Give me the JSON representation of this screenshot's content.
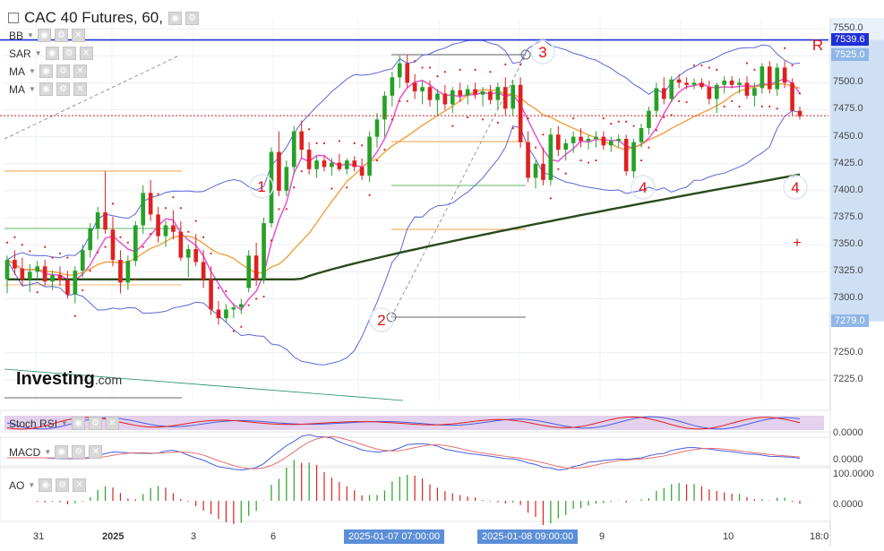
{
  "window": {
    "title": "CAC 40 Futures, 60,",
    "brand_name": "Investing",
    "brand_suffix": ".com"
  },
  "indicators": [
    {
      "label": "BB"
    },
    {
      "label": "SAR"
    },
    {
      "label": "MA"
    },
    {
      "label": "MA"
    }
  ],
  "sub_panels": [
    {
      "label": "Stoch RSI",
      "axis": [
        "0.0000"
      ]
    },
    {
      "label": "MACD",
      "axis": [
        "0.0000"
      ]
    },
    {
      "label": "AO",
      "axis": [
        "100.0000",
        "0.0000"
      ]
    }
  ],
  "chart_data": {
    "type": "candlestick",
    "symbol": "CAC 40 Futures",
    "interval": "60",
    "y_ticks": [
      7550.0,
      7525.0,
      7500.0,
      7475.0,
      7450.0,
      7425.0,
      7400.0,
      7375.0,
      7350.0,
      7325.0,
      7300.0,
      7279.0,
      7250.0,
      7225.0
    ],
    "y_tick_labels": [
      "7550.0",
      "7525.0",
      "7500.0",
      "7475.0",
      "7450.0",
      "7425.0",
      "7400.0",
      "7375.0",
      "7350.0",
      "7325.0",
      "7300.0",
      "7279.0",
      "7250.0",
      "7225.0"
    ],
    "ylim": [
      7205,
      7560
    ],
    "x_labels": [
      "31",
      "2025",
      "3",
      "6",
      "9",
      "10",
      "18:0"
    ],
    "x_flag_labels": [
      "2025-01-07 07:00:00",
      "2025-01-08 09:00:00"
    ],
    "price_flags": [
      {
        "label": "7539.6",
        "value": 7539.6,
        "color": "#1f2fd6"
      },
      {
        "label": "7525.0",
        "value": 7525.0,
        "color": "#8fb6e6"
      },
      {
        "label": "7279.0",
        "value": 7279.0,
        "color": "#8fb6e6"
      }
    ],
    "resistance_line": 7539.6,
    "current_price_line": 7469.5,
    "annotations": [
      "1",
      "2",
      "3",
      "4",
      "4",
      "R",
      "+"
    ],
    "candles": [
      {
        "o": 7318,
        "h": 7340,
        "l": 7305,
        "c": 7336
      },
      {
        "o": 7336,
        "h": 7345,
        "l": 7322,
        "c": 7328
      },
      {
        "o": 7328,
        "h": 7338,
        "l": 7312,
        "c": 7318
      },
      {
        "o": 7318,
        "h": 7332,
        "l": 7306,
        "c": 7325
      },
      {
        "o": 7325,
        "h": 7335,
        "l": 7318,
        "c": 7330
      },
      {
        "o": 7330,
        "h": 7336,
        "l": 7312,
        "c": 7316
      },
      {
        "o": 7316,
        "h": 7326,
        "l": 7308,
        "c": 7322
      },
      {
        "o": 7322,
        "h": 7330,
        "l": 7312,
        "c": 7317
      },
      {
        "o": 7317,
        "h": 7326,
        "l": 7300,
        "c": 7304
      },
      {
        "o": 7304,
        "h": 7330,
        "l": 7296,
        "c": 7326
      },
      {
        "o": 7326,
        "h": 7350,
        "l": 7320,
        "c": 7345
      },
      {
        "o": 7345,
        "h": 7370,
        "l": 7338,
        "c": 7365
      },
      {
        "o": 7365,
        "h": 7385,
        "l": 7355,
        "c": 7380
      },
      {
        "o": 7380,
        "h": 7418,
        "l": 7360,
        "c": 7364
      },
      {
        "o": 7364,
        "h": 7376,
        "l": 7330,
        "c": 7336
      },
      {
        "o": 7336,
        "h": 7345,
        "l": 7305,
        "c": 7315
      },
      {
        "o": 7315,
        "h": 7340,
        "l": 7308,
        "c": 7335
      },
      {
        "o": 7335,
        "h": 7372,
        "l": 7330,
        "c": 7368
      },
      {
        "o": 7368,
        "h": 7405,
        "l": 7360,
        "c": 7398
      },
      {
        "o": 7398,
        "h": 7410,
        "l": 7372,
        "c": 7378
      },
      {
        "o": 7378,
        "h": 7385,
        "l": 7352,
        "c": 7358
      },
      {
        "o": 7358,
        "h": 7372,
        "l": 7348,
        "c": 7368
      },
      {
        "o": 7368,
        "h": 7382,
        "l": 7355,
        "c": 7362
      },
      {
        "o": 7362,
        "h": 7372,
        "l": 7335,
        "c": 7338
      },
      {
        "o": 7338,
        "h": 7350,
        "l": 7320,
        "c": 7346
      },
      {
        "o": 7346,
        "h": 7360,
        "l": 7330,
        "c": 7334
      },
      {
        "o": 7334,
        "h": 7345,
        "l": 7310,
        "c": 7318
      },
      {
        "o": 7318,
        "h": 7330,
        "l": 7285,
        "c": 7290
      },
      {
        "o": 7290,
        "h": 7298,
        "l": 7276,
        "c": 7282
      },
      {
        "o": 7282,
        "h": 7295,
        "l": 7278,
        "c": 7290
      },
      {
        "o": 7290,
        "h": 7296,
        "l": 7282,
        "c": 7292
      },
      {
        "o": 7292,
        "h": 7300,
        "l": 7286,
        "c": 7295
      },
      {
        "o": 7310,
        "h": 7345,
        "l": 7306,
        "c": 7340
      },
      {
        "o": 7340,
        "h": 7352,
        "l": 7312,
        "c": 7318
      },
      {
        "o": 7318,
        "h": 7375,
        "l": 7314,
        "c": 7370
      },
      {
        "o": 7370,
        "h": 7440,
        "l": 7366,
        "c": 7436
      },
      {
        "o": 7436,
        "h": 7455,
        "l": 7395,
        "c": 7400
      },
      {
        "o": 7400,
        "h": 7428,
        "l": 7395,
        "c": 7422
      },
      {
        "o": 7422,
        "h": 7460,
        "l": 7415,
        "c": 7455
      },
      {
        "o": 7455,
        "h": 7465,
        "l": 7430,
        "c": 7438
      },
      {
        "o": 7438,
        "h": 7445,
        "l": 7415,
        "c": 7420
      },
      {
        "o": 7420,
        "h": 7432,
        "l": 7412,
        "c": 7428
      },
      {
        "o": 7428,
        "h": 7432,
        "l": 7418,
        "c": 7422
      },
      {
        "o": 7422,
        "h": 7430,
        "l": 7414,
        "c": 7426
      },
      {
        "o": 7426,
        "h": 7434,
        "l": 7418,
        "c": 7420
      },
      {
        "o": 7420,
        "h": 7430,
        "l": 7415,
        "c": 7428
      },
      {
        "o": 7428,
        "h": 7432,
        "l": 7418,
        "c": 7422
      },
      {
        "o": 7422,
        "h": 7430,
        "l": 7410,
        "c": 7414
      },
      {
        "o": 7414,
        "h": 7455,
        "l": 7408,
        "c": 7450
      },
      {
        "o": 7450,
        "h": 7472,
        "l": 7440,
        "c": 7466
      },
      {
        "o": 7466,
        "h": 7492,
        "l": 7450,
        "c": 7488
      },
      {
        "o": 7488,
        "h": 7510,
        "l": 7478,
        "c": 7505
      },
      {
        "o": 7505,
        "h": 7525,
        "l": 7495,
        "c": 7518
      },
      {
        "o": 7518,
        "h": 7526,
        "l": 7495,
        "c": 7500
      },
      {
        "o": 7500,
        "h": 7508,
        "l": 7485,
        "c": 7492
      },
      {
        "o": 7492,
        "h": 7502,
        "l": 7480,
        "c": 7496
      },
      {
        "o": 7496,
        "h": 7502,
        "l": 7478,
        "c": 7484
      },
      {
        "o": 7484,
        "h": 7494,
        "l": 7470,
        "c": 7490
      },
      {
        "o": 7490,
        "h": 7498,
        "l": 7475,
        "c": 7480
      },
      {
        "o": 7480,
        "h": 7496,
        "l": 7472,
        "c": 7493
      },
      {
        "o": 7493,
        "h": 7500,
        "l": 7482,
        "c": 7488
      },
      {
        "o": 7488,
        "h": 7498,
        "l": 7480,
        "c": 7494
      },
      {
        "o": 7494,
        "h": 7500,
        "l": 7485,
        "c": 7489
      },
      {
        "o": 7489,
        "h": 7496,
        "l": 7478,
        "c": 7492
      },
      {
        "o": 7492,
        "h": 7498,
        "l": 7480,
        "c": 7484
      },
      {
        "o": 7484,
        "h": 7500,
        "l": 7475,
        "c": 7496
      },
      {
        "o": 7496,
        "h": 7505,
        "l": 7470,
        "c": 7476
      },
      {
        "o": 7476,
        "h": 7502,
        "l": 7470,
        "c": 7498
      },
      {
        "o": 7498,
        "h": 7505,
        "l": 7440,
        "c": 7445
      },
      {
        "o": 7445,
        "h": 7455,
        "l": 7408,
        "c": 7412
      },
      {
        "o": 7412,
        "h": 7428,
        "l": 7402,
        "c": 7425
      },
      {
        "o": 7425,
        "h": 7440,
        "l": 7405,
        "c": 7410
      },
      {
        "o": 7410,
        "h": 7458,
        "l": 7405,
        "c": 7452
      },
      {
        "o": 7452,
        "h": 7460,
        "l": 7432,
        "c": 7438
      },
      {
        "o": 7438,
        "h": 7448,
        "l": 7428,
        "c": 7444
      },
      {
        "o": 7444,
        "h": 7455,
        "l": 7435,
        "c": 7450
      },
      {
        "o": 7450,
        "h": 7458,
        "l": 7440,
        "c": 7446
      },
      {
        "o": 7446,
        "h": 7452,
        "l": 7438,
        "c": 7448
      },
      {
        "o": 7448,
        "h": 7455,
        "l": 7440,
        "c": 7450
      },
      {
        "o": 7450,
        "h": 7455,
        "l": 7438,
        "c": 7442
      },
      {
        "o": 7442,
        "h": 7450,
        "l": 7436,
        "c": 7446
      },
      {
        "o": 7446,
        "h": 7452,
        "l": 7440,
        "c": 7448
      },
      {
        "o": 7448,
        "h": 7452,
        "l": 7414,
        "c": 7418
      },
      {
        "o": 7418,
        "h": 7448,
        "l": 7412,
        "c": 7445
      },
      {
        "o": 7445,
        "h": 7462,
        "l": 7440,
        "c": 7458
      },
      {
        "o": 7458,
        "h": 7478,
        "l": 7452,
        "c": 7474
      },
      {
        "o": 7474,
        "h": 7500,
        "l": 7468,
        "c": 7495
      },
      {
        "o": 7495,
        "h": 7505,
        "l": 7480,
        "c": 7485
      },
      {
        "o": 7485,
        "h": 7506,
        "l": 7482,
        "c": 7503
      },
      {
        "o": 7503,
        "h": 7508,
        "l": 7495,
        "c": 7500
      },
      {
        "o": 7500,
        "h": 7505,
        "l": 7494,
        "c": 7498
      },
      {
        "o": 7498,
        "h": 7504,
        "l": 7494,
        "c": 7500
      },
      {
        "o": 7500,
        "h": 7504,
        "l": 7494,
        "c": 7496
      },
      {
        "o": 7496,
        "h": 7502,
        "l": 7480,
        "c": 7485
      },
      {
        "o": 7485,
        "h": 7500,
        "l": 7472,
        "c": 7498
      },
      {
        "o": 7498,
        "h": 7506,
        "l": 7490,
        "c": 7502
      },
      {
        "o": 7502,
        "h": 7506,
        "l": 7495,
        "c": 7498
      },
      {
        "o": 7498,
        "h": 7504,
        "l": 7490,
        "c": 7500
      },
      {
        "o": 7500,
        "h": 7506,
        "l": 7485,
        "c": 7488
      },
      {
        "o": 7488,
        "h": 7500,
        "l": 7478,
        "c": 7495
      },
      {
        "o": 7495,
        "h": 7518,
        "l": 7490,
        "c": 7515
      },
      {
        "o": 7515,
        "h": 7520,
        "l": 7490,
        "c": 7494
      },
      {
        "o": 7494,
        "h": 7518,
        "l": 7488,
        "c": 7514
      },
      {
        "o": 7514,
        "h": 7520,
        "l": 7495,
        "c": 7500
      },
      {
        "o": 7500,
        "h": 7504,
        "l": 7470,
        "c": 7474
      },
      {
        "o": 7474,
        "h": 7478,
        "l": 7466,
        "c": 7469
      }
    ],
    "series": [
      {
        "name": "BB"
      },
      {
        "name": "SAR"
      },
      {
        "name": "MA"
      },
      {
        "name": "MA"
      }
    ],
    "grid": true
  },
  "colors": {
    "bull": "#26a126",
    "bear": "#e02020",
    "bollinger": "#5b66d9",
    "sar": "#e02020",
    "ma_fast": "#e85ad6",
    "ma_slow": "#f0a040",
    "ma_long": "#2b4a1a",
    "resistance": "#1f2fd6",
    "price_line": "#c81e1e",
    "annotation": "#e01010"
  }
}
